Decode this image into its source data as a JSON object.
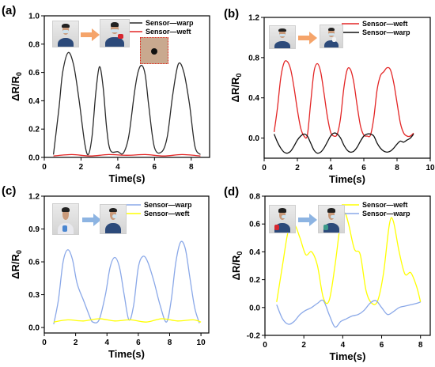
{
  "colors": {
    "black": "#2b2b2b",
    "red": "#e32626",
    "blue": "#8aa8e8",
    "yellow": "#ffff00",
    "arrow_orange": "#f5a46a",
    "arrow_blue": "#8db4e2",
    "inset_border": "#e2231a"
  },
  "chart_data": [
    {
      "type": "line",
      "panel_label": "(a)",
      "xlabel": "Time(s)",
      "ylabel": "ΔR/R",
      "ylabel_sub": "0",
      "xlim": [
        0,
        9
      ],
      "ylim": [
        0,
        1.0
      ],
      "xticks": [
        0,
        2,
        4,
        6,
        8
      ],
      "xtick_labels": [
        "0",
        "2",
        "4",
        "6",
        "8"
      ],
      "yticks": [
        0,
        0.2,
        0.4,
        0.6,
        0.8,
        1.0
      ],
      "ytick_labels": [
        "0.0",
        "0.2",
        "0.4",
        "0.6",
        "0.8",
        "1.0"
      ],
      "grid": false,
      "legend_position": "top-right",
      "series": [
        {
          "name": "Sensor—warp",
          "color": "#2b2b2b",
          "x": [
            0.5,
            0.8,
            1.0,
            1.3,
            1.6,
            1.9,
            2.2,
            2.4,
            2.6,
            2.8,
            3.0,
            3.2,
            3.4,
            3.6,
            4.0,
            4.3,
            4.6,
            4.9,
            5.1,
            5.3,
            5.5,
            5.7,
            6.0,
            6.4,
            6.7,
            7.0,
            7.3,
            7.6,
            7.9,
            8.2,
            8.5
          ],
          "y": [
            0.02,
            0.35,
            0.6,
            0.74,
            0.65,
            0.4,
            0.1,
            0.02,
            0.15,
            0.45,
            0.64,
            0.5,
            0.2,
            0.05,
            0.04,
            0.03,
            0.15,
            0.45,
            0.6,
            0.65,
            0.58,
            0.35,
            0.07,
            0.04,
            0.15,
            0.45,
            0.66,
            0.6,
            0.38,
            0.08,
            0.02
          ]
        },
        {
          "name": "Sensor—weft",
          "color": "#e32626",
          "x": [
            0.5,
            1.5,
            2.5,
            3.5,
            4.5,
            5.5,
            6.5,
            7.5,
            8.5
          ],
          "y": [
            0.01,
            0.02,
            0.01,
            0.02,
            0.015,
            0.02,
            0.01,
            0.02,
            0.01
          ]
        }
      ]
    },
    {
      "type": "line",
      "panel_label": "(b)",
      "xlabel": "Time(s)",
      "ylabel": "ΔR/R",
      "ylabel_sub": "0",
      "xlim": [
        0,
        10
      ],
      "ylim": [
        -0.2,
        1.2
      ],
      "xticks": [
        0,
        2,
        4,
        6,
        8,
        10
      ],
      "xtick_labels": [
        "0",
        "2",
        "4",
        "6",
        "8",
        "10"
      ],
      "yticks": [
        0,
        0.4,
        0.8,
        1.2
      ],
      "ytick_labels": [
        "0.0",
        "0.4",
        "0.8",
        "1.2"
      ],
      "grid": false,
      "legend_position": "top-right",
      "series": [
        {
          "name": "Sensor—weft",
          "color": "#e32626",
          "x": [
            0.6,
            0.8,
            1.0,
            1.2,
            1.4,
            1.6,
            1.8,
            2.0,
            2.2,
            2.4,
            2.6,
            2.8,
            3.0,
            3.2,
            3.4,
            3.6,
            3.8,
            4.0,
            4.2,
            4.4,
            4.6,
            4.8,
            5.0,
            5.2,
            5.4,
            5.6,
            5.8,
            6.0,
            6.2,
            6.4,
            6.6,
            6.8,
            7.0,
            7.2,
            7.4,
            7.6,
            7.8,
            8.0,
            8.2,
            8.4,
            8.6,
            8.8,
            9.0
          ],
          "y": [
            0.06,
            0.3,
            0.6,
            0.75,
            0.76,
            0.68,
            0.5,
            0.28,
            0.1,
            0.02,
            0.03,
            0.35,
            0.66,
            0.74,
            0.66,
            0.45,
            0.22,
            0.06,
            0.02,
            0.04,
            0.2,
            0.5,
            0.68,
            0.68,
            0.55,
            0.32,
            0.12,
            0.03,
            0.02,
            0.03,
            0.2,
            0.48,
            0.62,
            0.66,
            0.7,
            0.68,
            0.55,
            0.35,
            0.15,
            0.05,
            0.02,
            0.02,
            0.05
          ]
        },
        {
          "name": "Sensor—warp",
          "color": "#111111",
          "x": [
            0.6,
            0.8,
            1.0,
            1.2,
            1.4,
            1.6,
            1.8,
            2.0,
            2.2,
            2.4,
            2.6,
            2.8,
            3.0,
            3.2,
            3.4,
            3.6,
            3.8,
            4.0,
            4.2,
            4.4,
            4.6,
            4.8,
            5.0,
            5.2,
            5.4,
            5.6,
            5.8,
            6.0,
            6.2,
            6.4,
            6.6,
            6.8,
            7.0,
            7.2,
            7.4,
            7.6,
            7.8,
            8.0,
            8.2,
            8.4,
            8.6,
            8.8,
            9.0
          ],
          "y": [
            0.04,
            -0.04,
            -0.1,
            -0.14,
            -0.15,
            -0.13,
            -0.08,
            -0.02,
            0.02,
            0.04,
            0.02,
            -0.05,
            -0.12,
            -0.15,
            -0.14,
            -0.1,
            -0.04,
            0.02,
            0.05,
            0.04,
            0.0,
            -0.07,
            -0.12,
            -0.14,
            -0.13,
            -0.09,
            -0.03,
            0.02,
            0.04,
            0.04,
            0.02,
            -0.05,
            -0.1,
            -0.13,
            -0.14,
            -0.13,
            -0.1,
            -0.06,
            -0.03,
            -0.04,
            -0.02,
            0.0,
            0.04
          ]
        }
      ]
    },
    {
      "type": "line",
      "panel_label": "(c)",
      "xlabel": "Time(s)",
      "ylabel": "ΔR/R",
      "ylabel_sub": "0",
      "xlim": [
        0,
        10.5
      ],
      "ylim": [
        -0.05,
        1.2
      ],
      "xticks": [
        0,
        2,
        4,
        6,
        8,
        10
      ],
      "xtick_labels": [
        "0",
        "2",
        "4",
        "6",
        "8",
        "10"
      ],
      "yticks": [
        0,
        0.3,
        0.6,
        0.9,
        1.2
      ],
      "ytick_labels": [
        "0.0",
        "0.3",
        "0.6",
        "0.9",
        "1.2"
      ],
      "grid": false,
      "legend_position": "top-right",
      "series": [
        {
          "name": "Sensor—warp",
          "color": "#8aa8e8",
          "x": [
            0.6,
            0.9,
            1.2,
            1.5,
            1.8,
            2.1,
            2.5,
            2.9,
            3.1,
            3.5,
            3.9,
            4.2,
            4.5,
            4.8,
            5.1,
            5.4,
            5.7,
            6.0,
            6.3,
            6.6,
            7.0,
            7.4,
            7.8,
            8.1,
            8.4,
            8.7,
            9.0,
            9.3,
            9.6,
            9.9
          ],
          "y": [
            0.03,
            0.25,
            0.6,
            0.71,
            0.62,
            0.4,
            0.25,
            0.1,
            0.05,
            0.07,
            0.3,
            0.55,
            0.64,
            0.55,
            0.3,
            0.07,
            0.2,
            0.55,
            0.65,
            0.6,
            0.42,
            0.2,
            0.05,
            0.25,
            0.6,
            0.78,
            0.72,
            0.45,
            0.18,
            0.04
          ]
        },
        {
          "name": "Sensor—weft",
          "color": "#ffff00",
          "x": [
            0.6,
            1.5,
            2.5,
            3.5,
            4.5,
            5.5,
            6.5,
            7.5,
            8.5,
            9.5,
            10.0
          ],
          "y": [
            0.05,
            0.07,
            0.06,
            0.08,
            0.06,
            0.07,
            0.05,
            0.08,
            0.06,
            0.07,
            0.05
          ]
        }
      ]
    },
    {
      "type": "line",
      "panel_label": "(d)",
      "xlabel": "Time(s)",
      "ylabel": "ΔR/R",
      "ylabel_sub": "0",
      "xlim": [
        0,
        8.5
      ],
      "ylim": [
        -0.2,
        0.8
      ],
      "xticks": [
        0,
        2,
        4,
        6,
        8
      ],
      "xtick_labels": [
        "0",
        "2",
        "4",
        "6",
        "8"
      ],
      "yticks": [
        -0.2,
        0.0,
        0.2,
        0.4,
        0.6,
        0.8
      ],
      "ytick_labels": [
        "-0.2",
        "0.0",
        "0.2",
        "0.4",
        "0.6",
        "0.8"
      ],
      "grid": false,
      "legend_position": "top-right",
      "series": [
        {
          "name": "Sensor—weft",
          "color": "#ffff00",
          "x": [
            0.6,
            0.9,
            1.2,
            1.5,
            1.8,
            2.1,
            2.4,
            2.7,
            3.0,
            3.3,
            3.6,
            3.9,
            4.1,
            4.3,
            4.6,
            4.9,
            5.2,
            5.5,
            5.8,
            6.1,
            6.4,
            6.6,
            6.9,
            7.2,
            7.5,
            7.8,
            8.0
          ],
          "y": [
            0.04,
            0.3,
            0.55,
            0.6,
            0.5,
            0.38,
            0.4,
            0.3,
            0.07,
            0.05,
            0.3,
            0.62,
            0.68,
            0.6,
            0.42,
            0.38,
            0.12,
            0.03,
            0.05,
            0.25,
            0.6,
            0.62,
            0.4,
            0.24,
            0.25,
            0.15,
            0.04
          ]
        },
        {
          "name": "Sensor—warp",
          "color": "#8aa8e8",
          "x": [
            0.6,
            0.9,
            1.2,
            1.5,
            1.8,
            2.1,
            2.4,
            2.7,
            3.0,
            3.3,
            3.6,
            3.9,
            4.2,
            4.5,
            4.8,
            5.1,
            5.4,
            5.7,
            6.0,
            6.3,
            6.6,
            6.9,
            7.2,
            7.5,
            7.8,
            8.0
          ],
          "y": [
            0.02,
            -0.08,
            -0.12,
            -0.1,
            -0.05,
            -0.02,
            0.0,
            0.03,
            0.05,
            -0.05,
            -0.14,
            -0.1,
            -0.08,
            -0.06,
            -0.05,
            -0.02,
            0.03,
            0.05,
            0.0,
            -0.05,
            -0.03,
            0.0,
            0.01,
            0.02,
            0.03,
            0.04
          ]
        }
      ]
    }
  ]
}
